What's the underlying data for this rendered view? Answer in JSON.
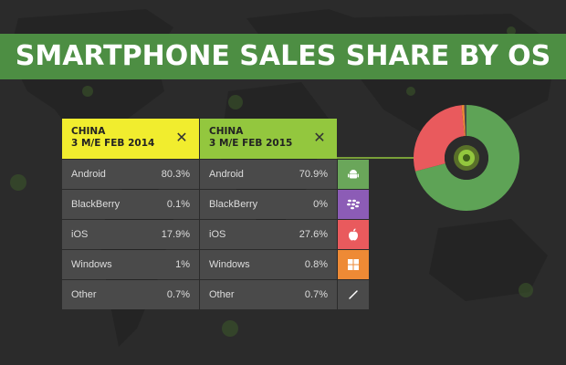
{
  "header": {
    "title": "SMARTPHONE SALES SHARE BY OS"
  },
  "colors": {
    "band": "#4d8e43",
    "yellow": "#f1ed2e",
    "lime": "#93c73e",
    "android": "#6aa65a",
    "blackberry": "#8c5cb6",
    "ios": "#e95a5d",
    "windows": "#ee8a35",
    "other": "#4a4a4a"
  },
  "icons": [
    "android-icon",
    "blackberry-icon",
    "apple-icon",
    "windows-icon",
    "other-icon"
  ],
  "chart_data": {
    "type": "table",
    "title": "SMARTPHONE SALES SHARE BY OS",
    "columns": [
      {
        "region": "CHINA",
        "period": "3 M/E FEB 2014",
        "rows": [
          {
            "os": "Android",
            "value": "80.3%"
          },
          {
            "os": "BlackBerry",
            "value": "0.1%"
          },
          {
            "os": "iOS",
            "value": "17.9%"
          },
          {
            "os": "Windows",
            "value": "1%"
          },
          {
            "os": "Other",
            "value": "0.7%"
          }
        ]
      },
      {
        "region": "CHINA",
        "period": "3 M/E FEB 2015",
        "rows": [
          {
            "os": "Android",
            "value": "70.9%"
          },
          {
            "os": "BlackBerry",
            "value": "0%"
          },
          {
            "os": "iOS",
            "value": "27.6%"
          },
          {
            "os": "Windows",
            "value": "0.8%"
          },
          {
            "os": "Other",
            "value": "0.7%"
          }
        ]
      }
    ],
    "donut": {
      "type": "pie",
      "period": "3 M/E FEB 2015",
      "slices": [
        {
          "os": "Android",
          "value": 70.9,
          "color": "#5ea356"
        },
        {
          "os": "BlackBerry",
          "value": 0,
          "color": "#8c5cb6"
        },
        {
          "os": "iOS",
          "value": 27.6,
          "color": "#e95a5d"
        },
        {
          "os": "Windows",
          "value": 0.8,
          "color": "#ee8a35"
        },
        {
          "os": "Other",
          "value": 0.7,
          "color": "#4a4a4a"
        }
      ]
    }
  }
}
